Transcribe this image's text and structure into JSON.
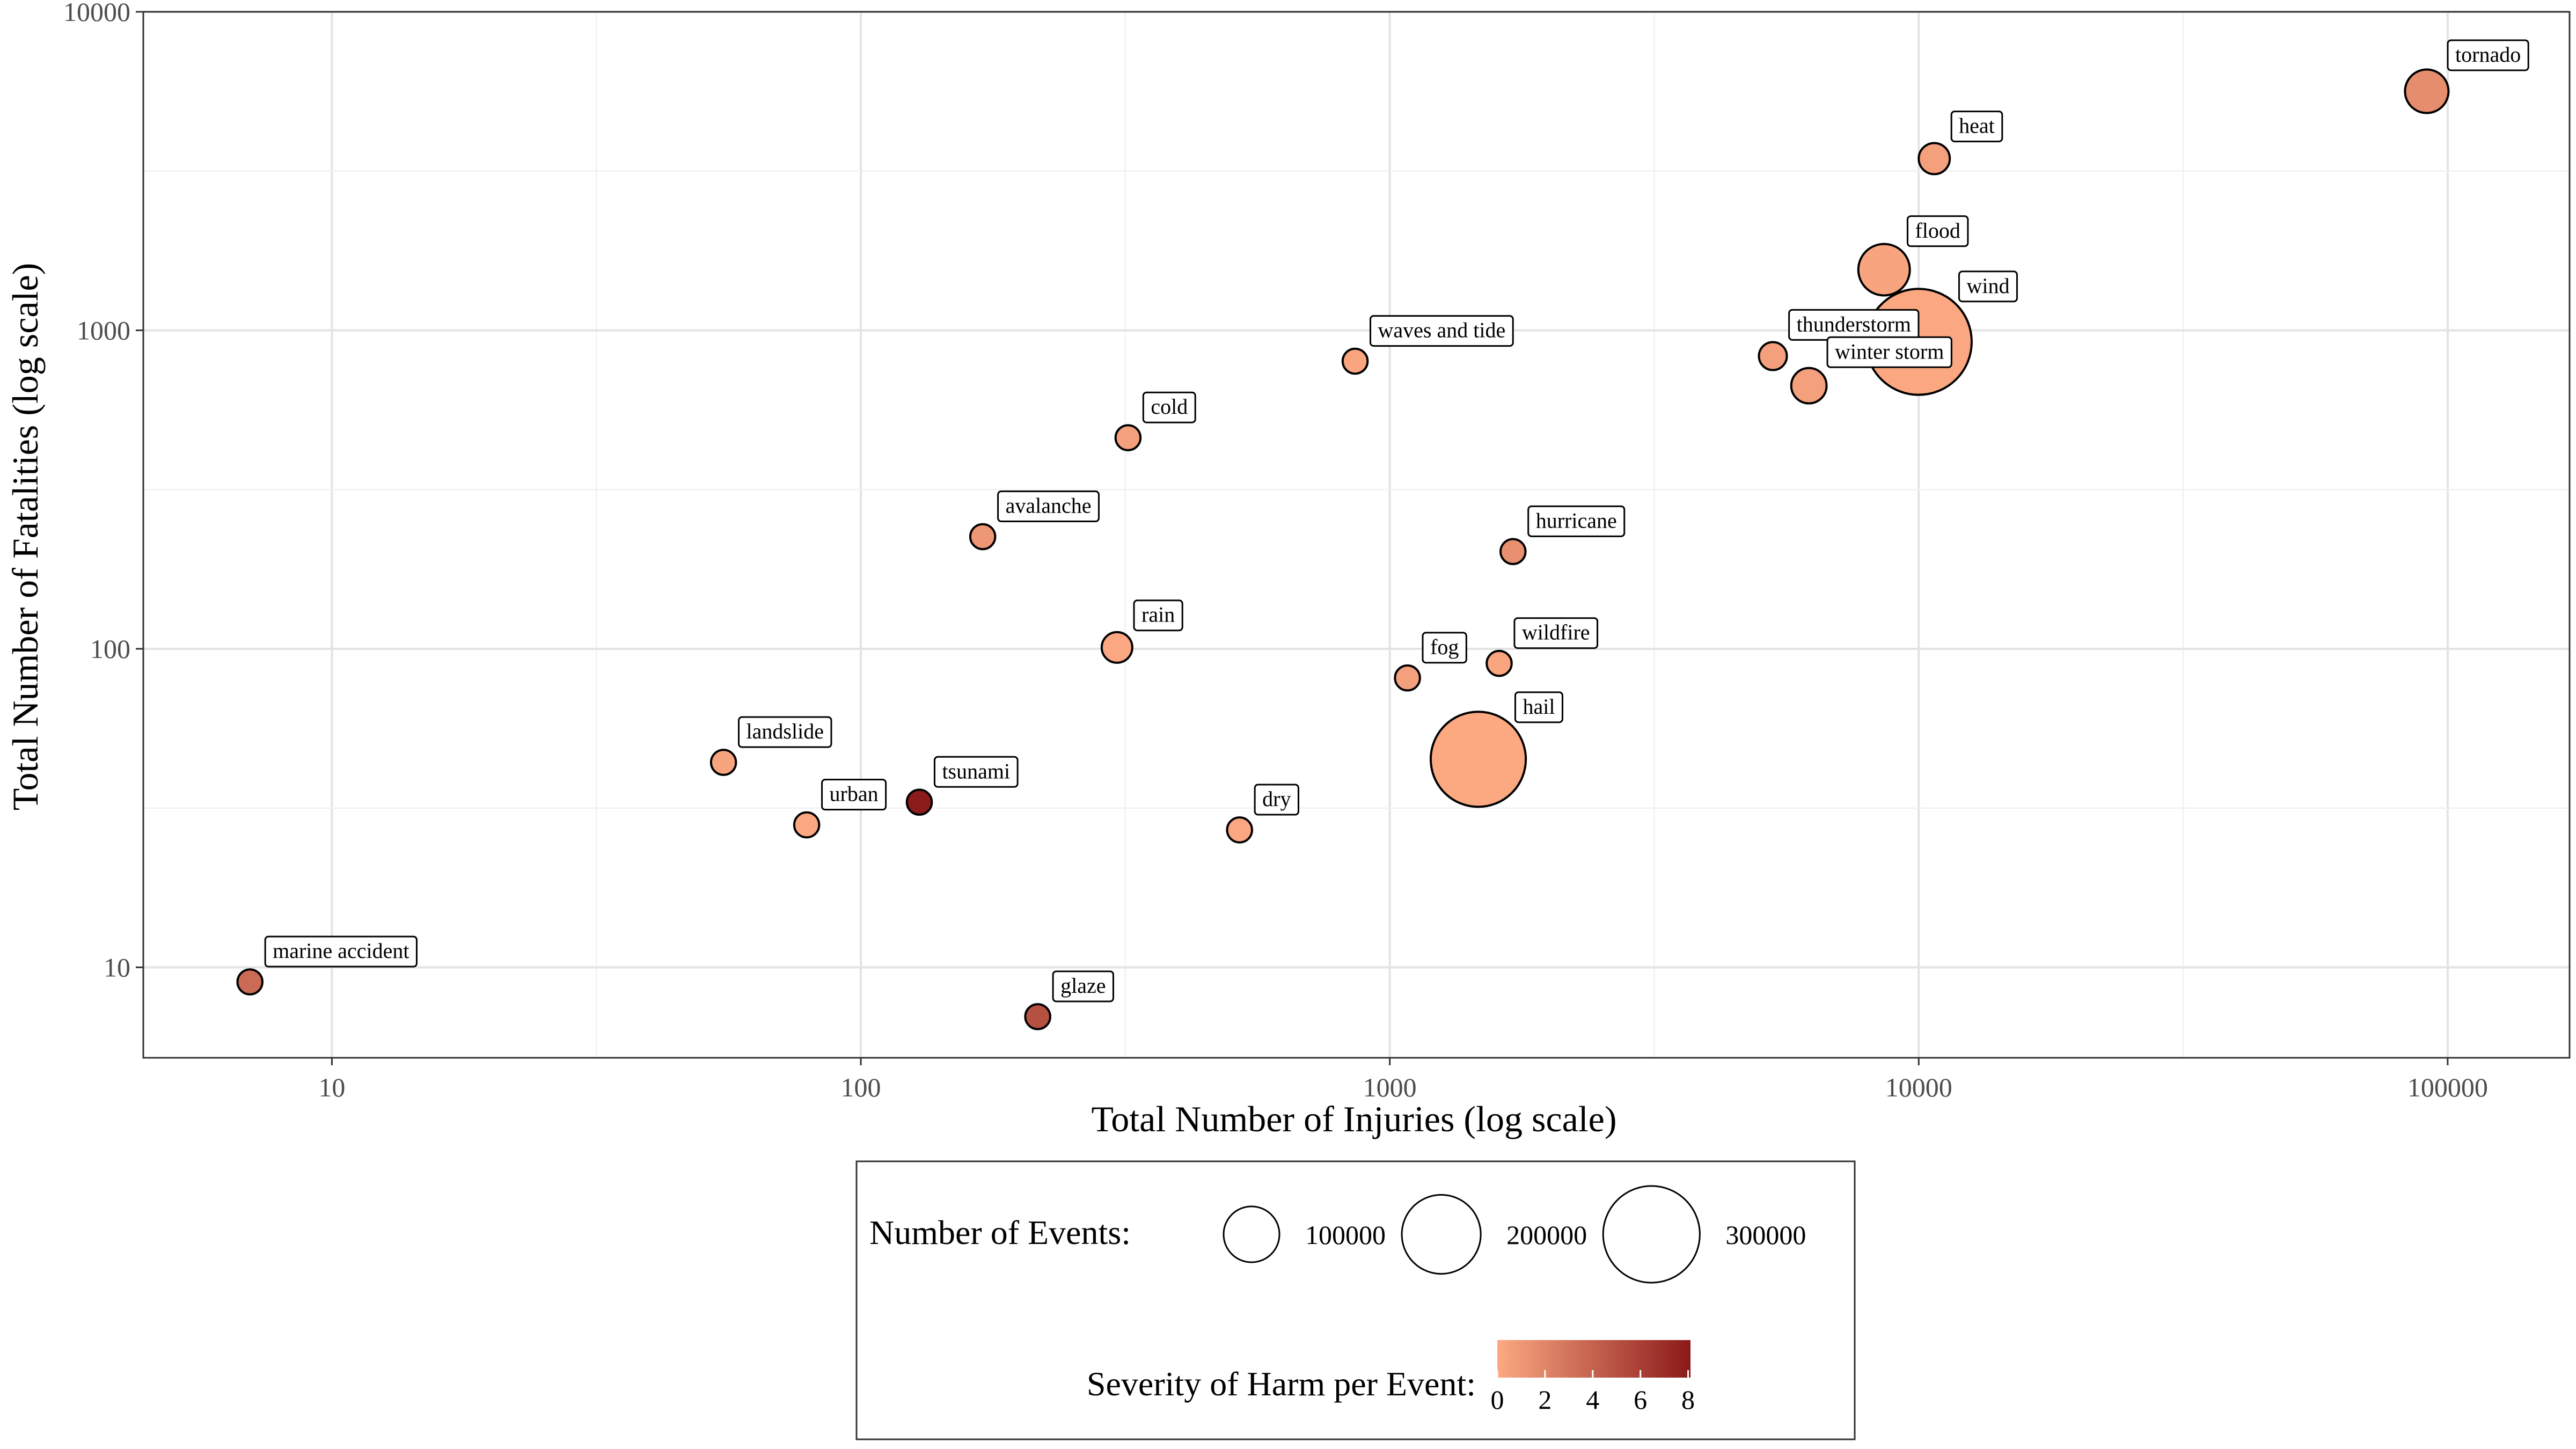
{
  "chart_data": {
    "type": "scatter",
    "xlabel": "Total Number of Injuries (log scale)",
    "ylabel": "Total Number of Fatalities (log scale)",
    "x_scale": "log",
    "y_scale": "log",
    "xlim": [
      4.4,
      170000
    ],
    "ylim": [
      5.2,
      10000
    ],
    "x_ticks": [
      10,
      100,
      1000,
      10000,
      100000
    ],
    "x_tick_labels": [
      "10",
      "100",
      "1000",
      "10000",
      "100000"
    ],
    "y_ticks": [
      10,
      100,
      1000,
      10000
    ],
    "y_tick_labels": [
      "10",
      "100",
      "1000",
      "10000"
    ],
    "grid": true,
    "points": [
      {
        "label": "tornado",
        "injuries": 91300,
        "fatalities": 5630,
        "events": 60700,
        "severity": 1.6
      },
      {
        "label": "heat",
        "injuries": 10700,
        "fatalities": 3460,
        "events": 31000,
        "severity": 0.5
      },
      {
        "label": "flood",
        "injuries": 8600,
        "fatalities": 1550,
        "events": 85000,
        "severity": 0.3
      },
      {
        "label": "wind",
        "injuries": 10000,
        "fatalities": 920,
        "events": 360000,
        "severity": 0.1
      },
      {
        "label": "thunderstorm",
        "injuries": 5300,
        "fatalities": 830,
        "events": 25000,
        "severity": 0.5
      },
      {
        "label": "winter storm",
        "injuries": 6200,
        "fatalities": 670,
        "events": 40000,
        "severity": 0.5
      },
      {
        "label": "waves and tide",
        "injuries": 860,
        "fatalities": 800,
        "events": 20000,
        "severity": 0.2
      },
      {
        "label": "cold",
        "injuries": 320,
        "fatalities": 460,
        "events": 20000,
        "severity": 0.5
      },
      {
        "label": "avalanche",
        "injuries": 170,
        "fatalities": 225,
        "events": 20000,
        "severity": 1.0
      },
      {
        "label": "hurricane",
        "injuries": 1710,
        "fatalities": 202,
        "events": 20000,
        "severity": 1.5
      },
      {
        "label": "rain",
        "injuries": 305,
        "fatalities": 101,
        "events": 30000,
        "severity": 0.1
      },
      {
        "label": "fog",
        "injuries": 1080,
        "fatalities": 81,
        "events": 20000,
        "severity": 0.5
      },
      {
        "label": "wildfire",
        "injuries": 1610,
        "fatalities": 90,
        "events": 20000,
        "severity": 0.2
      },
      {
        "label": "hail",
        "injuries": 1470,
        "fatalities": 45,
        "events": 290000,
        "severity": 0.0
      },
      {
        "label": "landslide",
        "injuries": 55,
        "fatalities": 44,
        "events": 20000,
        "severity": 0.3
      },
      {
        "label": "tsunami",
        "injuries": 129,
        "fatalities": 33,
        "events": 20000,
        "severity": 8.0
      },
      {
        "label": "urban",
        "injuries": 79,
        "fatalities": 28,
        "events": 20000,
        "severity": 0.1
      },
      {
        "label": "dry",
        "injuries": 520,
        "fatalities": 27,
        "events": 20000,
        "severity": 0.1
      },
      {
        "label": "marine accident",
        "injuries": 7,
        "fatalities": 9,
        "events": 20000,
        "severity": 3.5
      },
      {
        "label": "glaze",
        "injuries": 216,
        "fatalities": 7,
        "events": 20000,
        "severity": 5.0
      }
    ],
    "size_legend": {
      "title": "Number of Events:",
      "values": [
        100000,
        200000,
        300000
      ],
      "labels": [
        "100000",
        "200000",
        "300000"
      ]
    },
    "color_legend": {
      "title": "Severity of Harm per Event:",
      "range": [
        0,
        8.1
      ],
      "ticks": [
        0,
        2,
        4,
        6,
        8
      ],
      "tick_labels": [
        "0",
        "2",
        "4",
        "6",
        "8"
      ],
      "color_low": "#FCA982",
      "color_high": "#8B1A1A"
    }
  }
}
